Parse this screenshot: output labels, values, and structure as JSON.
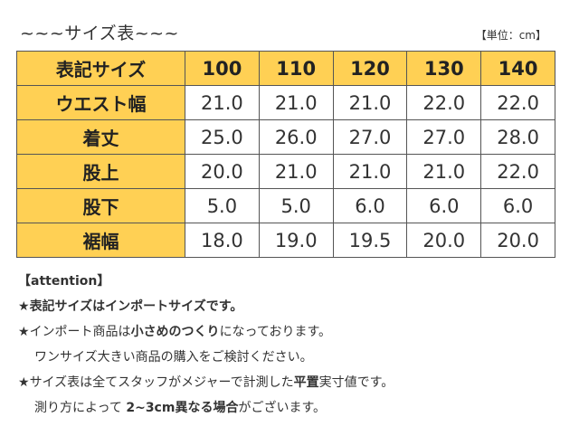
{
  "title": "~~~サイズ表~~~",
  "unit_label": "【単位：cm】",
  "table": {
    "header_label": "表記サイズ",
    "sizes": [
      "100",
      "110",
      "120",
      "130",
      "140"
    ],
    "rows": [
      {
        "label": "ウエスト幅",
        "values": [
          "21.0",
          "21.0",
          "21.0",
          "22.0",
          "22.0"
        ]
      },
      {
        "label": "着丈",
        "values": [
          "25.0",
          "26.0",
          "27.0",
          "27.0",
          "28.0"
        ]
      },
      {
        "label": "股上",
        "values": [
          "20.0",
          "21.0",
          "21.0",
          "21.0",
          "22.0"
        ]
      },
      {
        "label": "股下",
        "values": [
          "5.0",
          "5.0",
          "6.0",
          "6.0",
          "6.0"
        ]
      },
      {
        "label": "裾幅",
        "values": [
          "18.0",
          "19.0",
          "19.5",
          "20.0",
          "20.0"
        ]
      }
    ]
  },
  "notes": {
    "attention": "【attention】",
    "star": "★",
    "line1": "表記サイズはインポートサイズです。",
    "line2_a": "インポート商品は",
    "line2_b": "小さめのつくり",
    "line2_c": "になっております。",
    "line3": "ワンサイズ大きい商品の購入をご検討ください。",
    "line4_a": "サイズ表は全てスタッフがメジャーで計測した",
    "line4_b": "平置",
    "line4_c": "実寸値です。",
    "line5_a": "測り方によって ",
    "line5_b": "2~3cm異なる場合",
    "line5_c": "がございます。"
  }
}
